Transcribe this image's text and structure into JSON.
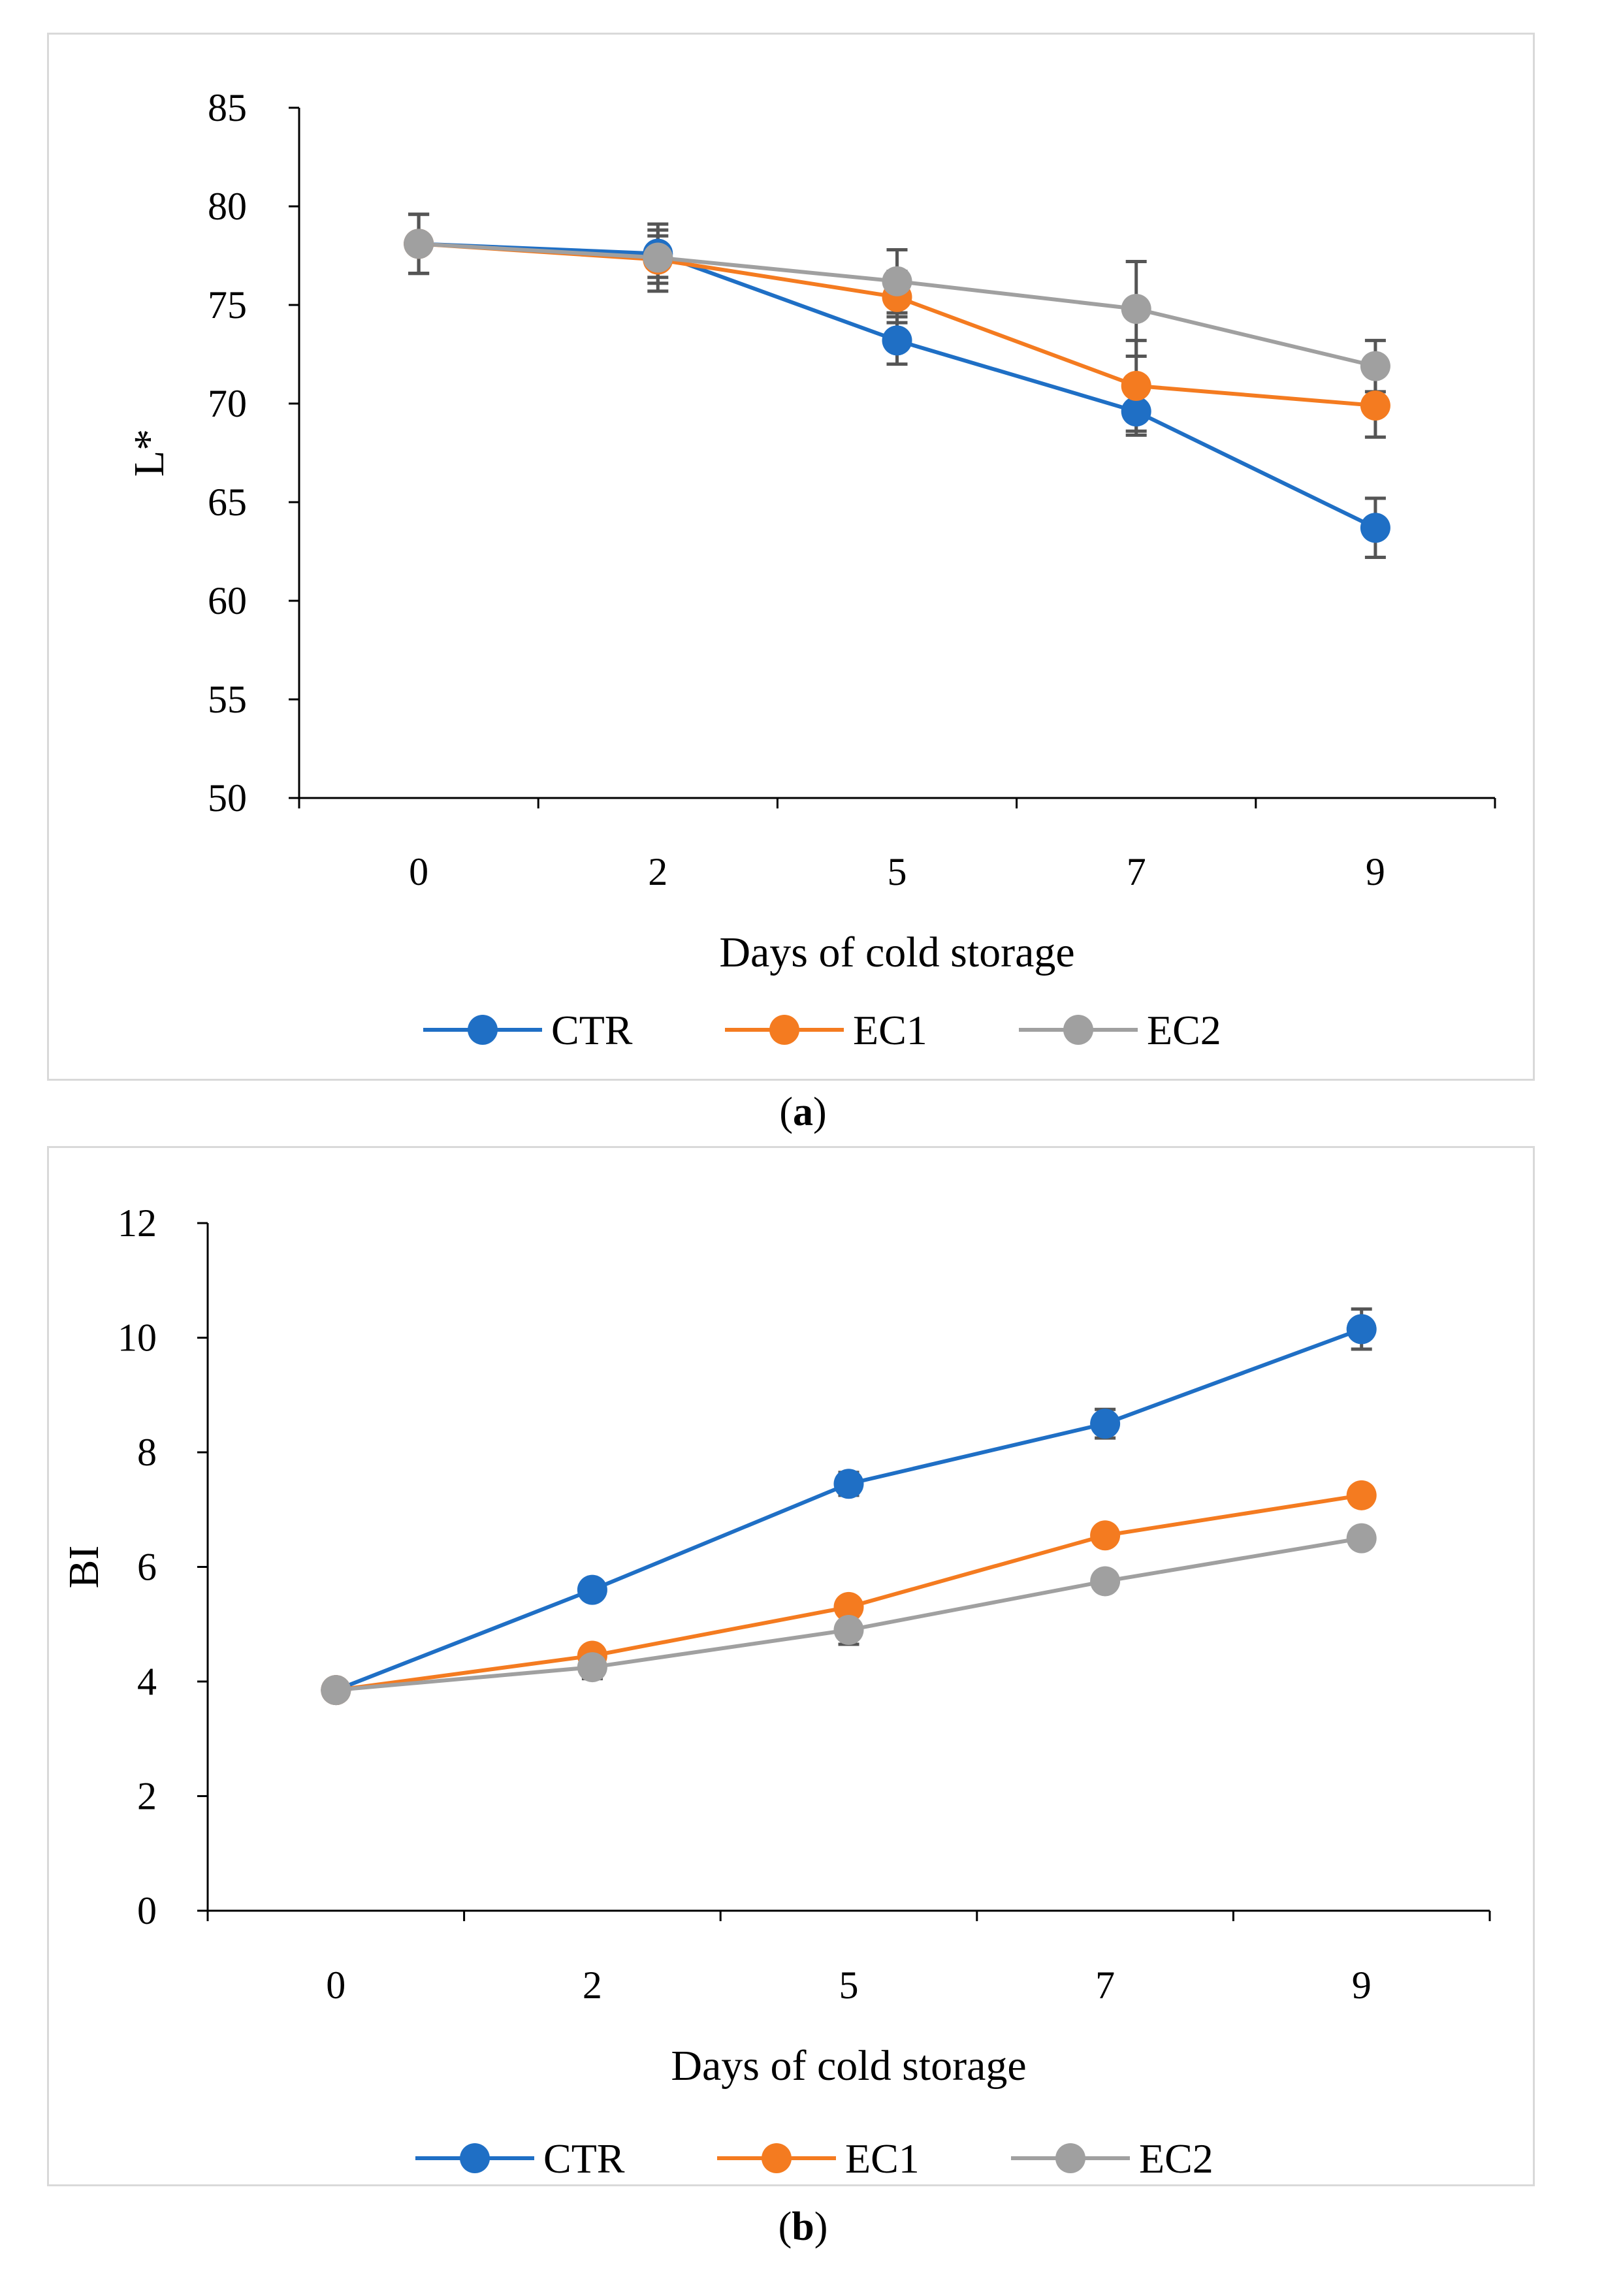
{
  "chart_data": [
    {
      "id": "a",
      "type": "line",
      "caption_label": "a",
      "xlabel": "Days of cold storage",
      "ylabel": "L*",
      "categories": [
        "0",
        "2",
        "5",
        "7",
        "9"
      ],
      "ylim": [
        50,
        85
      ],
      "yticks": [
        50,
        55,
        60,
        65,
        70,
        75,
        80,
        85
      ],
      "grid": false,
      "legend": "bottom",
      "series": [
        {
          "name": "CTR",
          "color": "#1f6fc5",
          "values": [
            78.1,
            77.6,
            73.2,
            69.6,
            63.7
          ],
          "errors": [
            1.5,
            1.2,
            1.2,
            1.2,
            1.5
          ]
        },
        {
          "name": "EC1",
          "color": "#f47b20",
          "values": [
            78.1,
            77.3,
            75.4,
            70.9,
            69.9
          ],
          "errors": [
            1.5,
            1.2,
            1.3,
            2.3,
            1.6
          ]
        },
        {
          "name": "EC2",
          "color": "#a0a0a0",
          "values": [
            78.1,
            77.4,
            76.2,
            74.8,
            71.9
          ],
          "errors": [
            1.5,
            1.7,
            1.6,
            2.4,
            1.3
          ]
        }
      ]
    },
    {
      "id": "b",
      "type": "line",
      "caption_label": "b",
      "xlabel": "Days of cold storage",
      "ylabel": "BI",
      "categories": [
        "0",
        "2",
        "5",
        "7",
        "9"
      ],
      "ylim": [
        0,
        12
      ],
      "yticks": [
        0,
        2,
        4,
        6,
        8,
        10,
        12
      ],
      "grid": false,
      "legend": "bottom",
      "series": [
        {
          "name": "CTR",
          "color": "#1f6fc5",
          "values": [
            3.85,
            5.6,
            7.45,
            8.5,
            10.15
          ],
          "errors": [
            0.1,
            0.15,
            0.2,
            0.25,
            0.35
          ]
        },
        {
          "name": "EC1",
          "color": "#f47b20",
          "values": [
            3.85,
            4.45,
            5.3,
            6.55,
            7.25
          ],
          "errors": [
            0.1,
            0.12,
            0.15,
            0.15,
            0.15
          ]
        },
        {
          "name": "EC2",
          "color": "#a0a0a0",
          "values": [
            3.85,
            4.25,
            4.9,
            5.75,
            6.5
          ],
          "errors": [
            0.1,
            0.2,
            0.25,
            0.1,
            0.1
          ]
        }
      ]
    }
  ]
}
